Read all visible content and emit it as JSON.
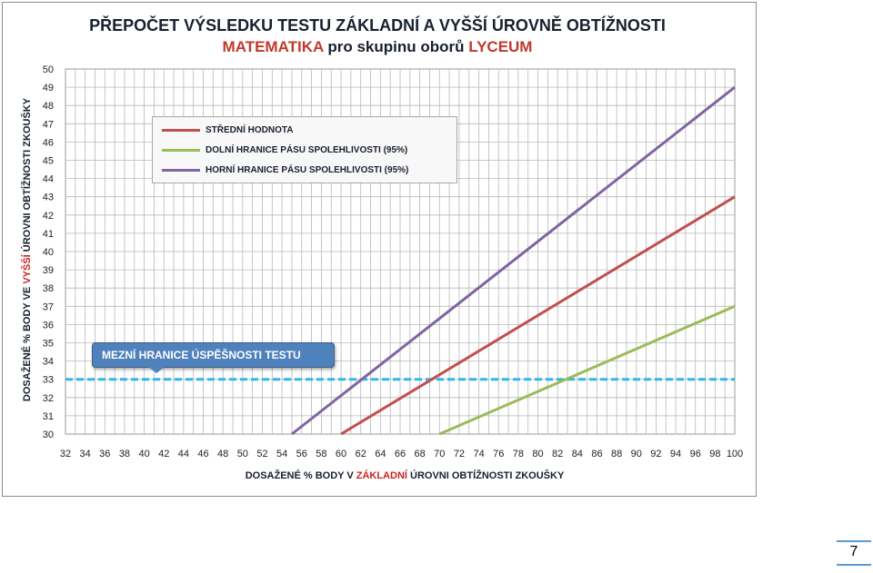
{
  "page_number": "7",
  "callout_text": "MEZNÍ HRANICE ÚSPĚŠNOSTI TESTU",
  "colors": {
    "stredni": "#c0504d",
    "dolni": "#9bbb59",
    "horni": "#8064a2",
    "threshold": "#31b8e8"
  },
  "chart_data": {
    "type": "line",
    "title_line1": "PŘEPOČET VÝSLEDKU TESTU ZÁKLADNÍ A VYŠŠÍ ÚROVNĚ OBTÍŽNOSTI",
    "title_line2": {
      "part1": "MATEMATIKA",
      "part2": " pro skupinu oborů ",
      "part3": "LYCEUM"
    },
    "xlabel": {
      "part1": "DOSAŽENÉ % BODY V ",
      "part2": "ZÁKLADNÍ",
      "part3": " ÚROVNI OBTÍŽNOSTI ZKOUŠKY"
    },
    "ylabel": {
      "part1": "DOSAŽENÉ % BODY VE ",
      "part2": "VYŠŠÍ",
      "part3": " ÚROVNI OBTÍŽNOSTI ZKOUŠKY"
    },
    "xlim": [
      32,
      100
    ],
    "ylim": [
      30,
      50
    ],
    "x_ticks": [
      "32",
      "34",
      "36",
      "38",
      "40",
      "42",
      "44",
      "46",
      "48",
      "50",
      "52",
      "54",
      "56",
      "58",
      "60",
      "62",
      "64",
      "66",
      "68",
      "70",
      "72",
      "74",
      "76",
      "78",
      "80",
      "82",
      "84",
      "86",
      "88",
      "90",
      "92",
      "94",
      "96",
      "98",
      "100"
    ],
    "y_ticks": [
      "30",
      "31",
      "32",
      "33",
      "34",
      "35",
      "36",
      "37",
      "38",
      "39",
      "40",
      "41",
      "42",
      "43",
      "44",
      "45",
      "46",
      "47",
      "48",
      "49",
      "50"
    ],
    "grid": true,
    "legend_position": "top-left",
    "series": [
      {
        "name": "STŘEDNÍ HODNOTA",
        "color": "#c0504d",
        "points": [
          [
            60,
            30
          ],
          [
            100,
            43
          ]
        ]
      },
      {
        "name": "DOLNÍ HRANICE PÁSU SPOLEHLIVOSTI (95%)",
        "color": "#9bbb59",
        "points": [
          [
            70,
            30
          ],
          [
            100,
            37
          ]
        ]
      },
      {
        "name": "HORNÍ HRANICE PÁSU SPOLEHLIVOSTI (95%)",
        "color": "#8064a2",
        "points": [
          [
            55,
            30
          ],
          [
            100,
            49
          ]
        ]
      }
    ],
    "threshold": {
      "y": 33,
      "color": "#31b8e8"
    }
  }
}
